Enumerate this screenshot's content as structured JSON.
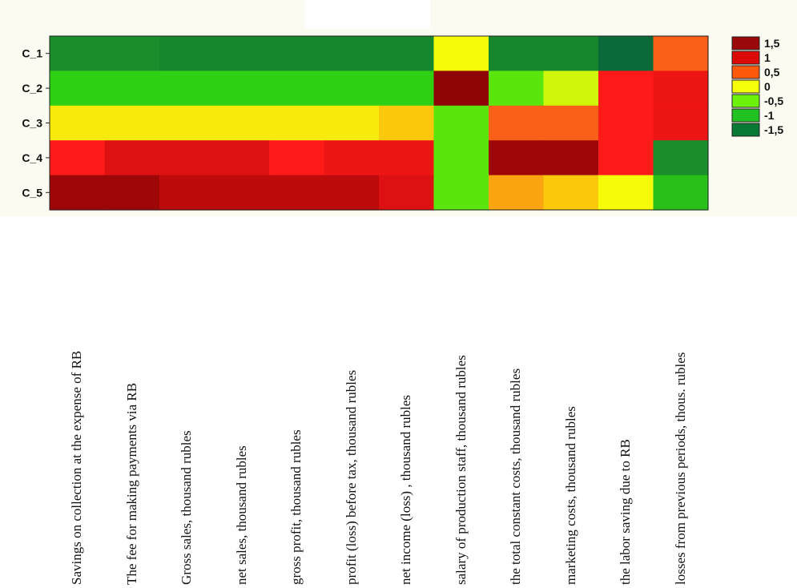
{
  "chart_data": {
    "type": "heatmap",
    "rows": [
      "C_1",
      "C_2",
      "C_3",
      "C_4",
      "C_5"
    ],
    "columns": [
      "Savings on collection at the expense of RB",
      "The fee for making payments via RB",
      "Gross sales, thousand rubles",
      "net sales, thousand rubles",
      "gross profit, thousand rubles",
      "profit (loss) before tax, thousand rubles",
      "net income (loss) , thousand rubles",
      "salary of production staff, thousand rubles",
      "the total constant costs, thousand rubles",
      "marketing costs, thousand rubles",
      "the labor saving due to RB",
      "losses from previous periods, thous. rubles"
    ],
    "values": [
      [
        -1.0,
        -1.0,
        -1.1,
        -1.1,
        -1.1,
        -1.1,
        -1.1,
        0.0,
        -1.1,
        -1.1,
        -1.5,
        0.6
      ],
      [
        -0.6,
        -0.6,
        -0.6,
        -0.6,
        -0.6,
        -0.6,
        -0.6,
        1.6,
        -0.4,
        -0.1,
        0.9,
        1.0
      ],
      [
        0.1,
        0.1,
        0.1,
        0.1,
        0.1,
        0.1,
        0.3,
        -0.4,
        0.6,
        0.6,
        0.9,
        1.0
      ],
      [
        0.9,
        1.1,
        1.1,
        1.1,
        0.9,
        1.0,
        1.0,
        -0.4,
        1.5,
        1.5,
        0.9,
        -1.0
      ],
      [
        1.5,
        1.5,
        1.3,
        1.3,
        1.3,
        1.3,
        1.1,
        -0.4,
        0.4,
        0.3,
        0.0,
        -0.7
      ]
    ],
    "legend": {
      "entries": [
        "1,5",
        "1",
        "0,5",
        "0",
        "-0,5",
        "-1",
        "-1,5"
      ],
      "colors": [
        "#9b0a0a",
        "#dd0a0a",
        "#ff5a0a",
        "#f5ff0a",
        "#6cf20a",
        "#21c121",
        "#097a35"
      ],
      "placement": "right"
    },
    "scale": {
      "stops": [
        -1.5,
        -1.0,
        -0.5,
        0.0,
        0.3,
        0.6,
        0.9,
        1.2,
        1.6
      ],
      "colors": [
        "#0a6a3a",
        "#1a8e2a",
        "#33e10d",
        "#f6fb0a",
        "#fbc80c",
        "#f76016",
        "#ff1a1a",
        "#cc0c0c",
        "#8f0505"
      ]
    }
  }
}
